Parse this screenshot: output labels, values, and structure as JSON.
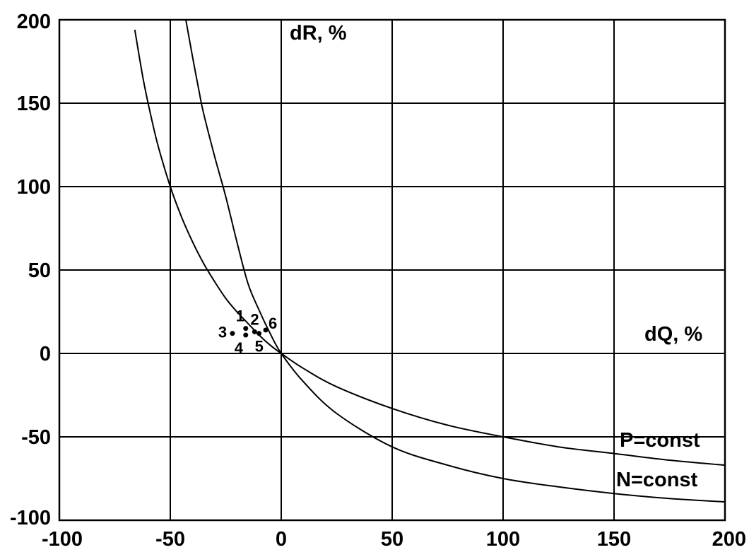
{
  "chart_data": {
    "type": "line",
    "title": "",
    "xlabel": "dQ, %",
    "ylabel": "dR, %",
    "xlim": [
      -100,
      200
    ],
    "ylim": [
      -100,
      200
    ],
    "grid": true,
    "x_ticks": [
      "-100",
      "-50",
      "0",
      "50",
      "100",
      "150",
      "200"
    ],
    "y_ticks": [
      "200",
      "150",
      "100",
      "50",
      "0",
      "-50",
      "-100"
    ],
    "x_tick_values": [
      -100,
      -50,
      0,
      50,
      100,
      150,
      200
    ],
    "y_tick_values": [
      200,
      150,
      100,
      50,
      0,
      -50,
      -100
    ],
    "series": [
      {
        "name": "P=const",
        "x": [
          -66,
          -62,
          -58,
          -55,
          -50,
          -45,
          -40,
          -35,
          -30,
          -25,
          -20,
          -15,
          -10,
          -5,
          0,
          10,
          25,
          50,
          75,
          100,
          125,
          150,
          175,
          200
        ],
        "y": [
          194,
          163,
          138,
          122,
          100,
          82,
          67,
          54,
          43,
          33,
          25,
          18,
          11,
          5,
          0,
          -9,
          -20,
          -33,
          -43,
          -50,
          -56,
          -60,
          -64,
          -67
        ]
      },
      {
        "name": "N=const",
        "x": [
          -43,
          -40,
          -37,
          -35,
          -30,
          -25,
          -20,
          -15,
          -10,
          -5,
          0,
          10,
          25,
          50,
          75,
          100,
          125,
          150,
          175,
          200
        ],
        "y": [
          200,
          178,
          157,
          144,
          118,
          94,
          67,
          42,
          26,
          12,
          0,
          -17,
          -36,
          -56,
          -67,
          -75,
          -80,
          -84,
          -87,
          -89
        ]
      }
    ],
    "points": [
      {
        "label": "1",
        "x": -16,
        "y": 15
      },
      {
        "label": "2",
        "x": -12,
        "y": 13
      },
      {
        "label": "3",
        "x": -22,
        "y": 12
      },
      {
        "label": "4",
        "x": -16,
        "y": 11
      },
      {
        "label": "5",
        "x": -10,
        "y": 12
      },
      {
        "label": "6",
        "x": -7,
        "y": 14
      }
    ]
  }
}
